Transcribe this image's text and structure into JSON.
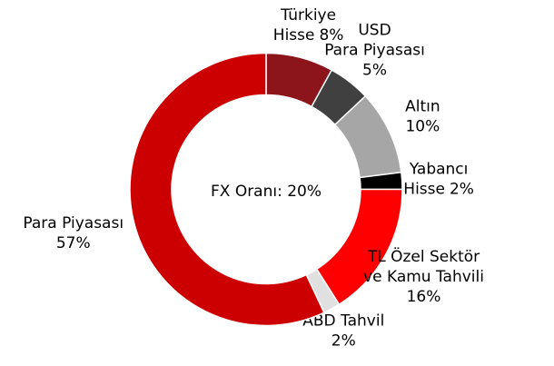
{
  "chart_data": {
    "type": "donut",
    "center_text": "FX Oranı: 20%",
    "categories": [
      "Türkiye Hisse",
      "USD Para Piyasası",
      "Altın",
      "Yabancı Hisse",
      "TL Özel Sektör ve Kamu Tahvili",
      "ABD Tahvil",
      "Para Piyasası"
    ],
    "values": [
      8,
      5,
      10,
      2,
      16,
      2,
      57
    ],
    "value_labels": [
      "8%",
      "5%",
      "10%",
      "2%",
      "16%",
      "2%",
      "57%"
    ],
    "colors": [
      "#8b151b",
      "#404040",
      "#a6a6a6",
      "#000000",
      "#ff0000",
      "#e0e0e0",
      "#cc0000"
    ]
  }
}
